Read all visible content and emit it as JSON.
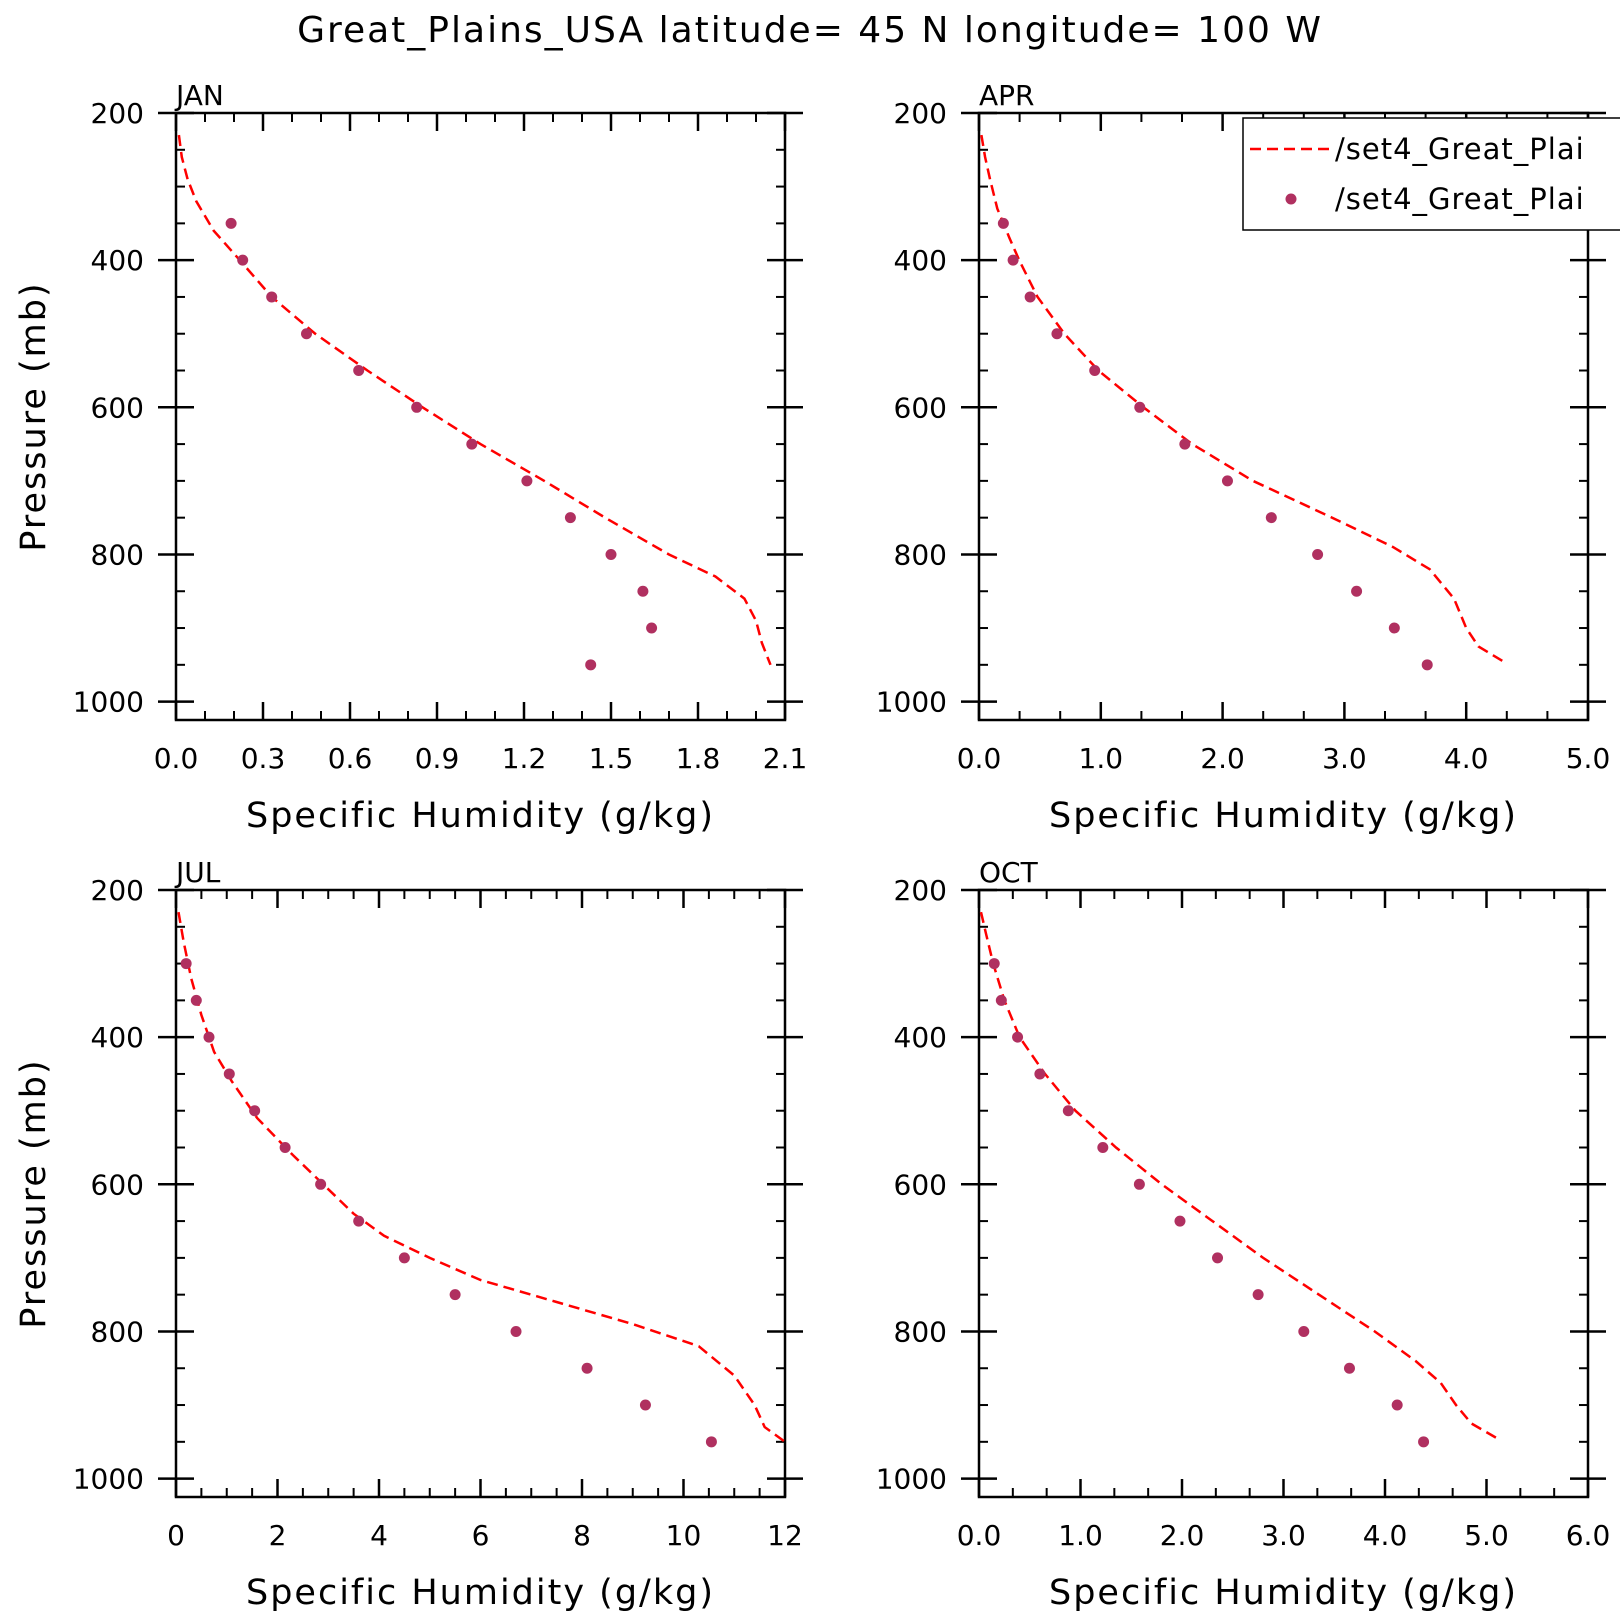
{
  "title": "Great_Plains_USA  latitude= 45 N longitude= 100 W",
  "legend": {
    "entries": [
      {
        "label": "/set4_Great_Plai",
        "style": "dashed-line",
        "color": "#ff0000"
      },
      {
        "label": "/set4_Great_Plai",
        "style": "dot",
        "color": "#b03060"
      }
    ]
  },
  "colors": {
    "model": "#ff0000",
    "obs": "#b03060",
    "axes": "#000000"
  },
  "chart_data": [
    {
      "type": "line",
      "panel": "JAN",
      "xlabel": "Specific Humidity (g/kg)",
      "ylabel": "Pressure (mb)",
      "xlim": [
        0,
        2.1
      ],
      "ylim": [
        200,
        1025
      ],
      "y_inverted": true,
      "xticks": [
        "0.0",
        "0.3",
        "0.6",
        "0.9",
        "1.2",
        "1.5",
        "1.8",
        "2.1"
      ],
      "xtick_values": [
        0,
        0.3,
        0.6,
        0.9,
        1.2,
        1.5,
        1.8,
        2.1
      ],
      "yticks": [
        "200",
        "400",
        "600",
        "800",
        "1000"
      ],
      "yticks_values": [
        200,
        400,
        600,
        800,
        1000
      ],
      "series": [
        {
          "style": "dashed-line",
          "points": [
            [
              0.01,
              230
            ],
            [
              0.02,
              260
            ],
            [
              0.04,
              290
            ],
            [
              0.07,
              320
            ],
            [
              0.13,
              360
            ],
            [
              0.22,
              400
            ],
            [
              0.33,
              450
            ],
            [
              0.48,
              500
            ],
            [
              0.66,
              550
            ],
            [
              0.85,
              600
            ],
            [
              1.05,
              650
            ],
            [
              1.27,
              700
            ],
            [
              1.48,
              750
            ],
            [
              1.7,
              800
            ],
            [
              1.86,
              830
            ],
            [
              1.96,
              860
            ],
            [
              2.0,
              890
            ],
            [
              2.02,
              920
            ],
            [
              2.04,
              940
            ],
            [
              2.05,
              950
            ]
          ]
        },
        {
          "style": "dots",
          "points": [
            [
              0.19,
              350
            ],
            [
              0.23,
              400
            ],
            [
              0.33,
              450
            ],
            [
              0.45,
              500
            ],
            [
              0.63,
              550
            ],
            [
              0.83,
              600
            ],
            [
              1.02,
              650
            ],
            [
              1.21,
              700
            ],
            [
              1.36,
              750
            ],
            [
              1.5,
              800
            ],
            [
              1.61,
              850
            ],
            [
              1.64,
              900
            ],
            [
              1.43,
              950
            ]
          ]
        }
      ]
    },
    {
      "type": "line",
      "panel": "APR",
      "xlabel": "Specific Humidity (g/kg)",
      "ylabel": "",
      "xlim": [
        0,
        5.0
      ],
      "ylim": [
        200,
        1025
      ],
      "y_inverted": true,
      "xticks": [
        "0.0",
        "1.0",
        "2.0",
        "3.0",
        "4.0",
        "5.0"
      ],
      "xtick_values": [
        0,
        1,
        2,
        3,
        4,
        5
      ],
      "yticks": [
        "200",
        "400",
        "600",
        "800",
        "1000"
      ],
      "yticks_values": [
        200,
        400,
        600,
        800,
        1000
      ],
      "series": [
        {
          "style": "dashed-line",
          "points": [
            [
              0.02,
              230
            ],
            [
              0.05,
              260
            ],
            [
              0.09,
              290
            ],
            [
              0.15,
              330
            ],
            [
              0.25,
              370
            ],
            [
              0.33,
              400
            ],
            [
              0.48,
              450
            ],
            [
              0.7,
              500
            ],
            [
              0.98,
              550
            ],
            [
              1.35,
              600
            ],
            [
              1.75,
              650
            ],
            [
              2.25,
              700
            ],
            [
              2.9,
              750
            ],
            [
              3.4,
              790
            ],
            [
              3.7,
              820
            ],
            [
              3.9,
              860
            ],
            [
              4.0,
              900
            ],
            [
              4.1,
              925
            ],
            [
              4.3,
              945
            ]
          ]
        },
        {
          "style": "dots",
          "points": [
            [
              0.2,
              350
            ],
            [
              0.28,
              400
            ],
            [
              0.42,
              450
            ],
            [
              0.64,
              500
            ],
            [
              0.95,
              550
            ],
            [
              1.32,
              600
            ],
            [
              1.69,
              650
            ],
            [
              2.04,
              700
            ],
            [
              2.4,
              750
            ],
            [
              2.78,
              800
            ],
            [
              3.1,
              850
            ],
            [
              3.41,
              900
            ],
            [
              3.68,
              950
            ]
          ]
        }
      ]
    },
    {
      "type": "line",
      "panel": "JUL",
      "xlabel": "Specific Humidity (g/kg)",
      "ylabel": "Pressure (mb)",
      "xlim": [
        0,
        12
      ],
      "ylim": [
        200,
        1025
      ],
      "y_inverted": true,
      "xticks": [
        "0",
        "2",
        "4",
        "6",
        "8",
        "10",
        "12"
      ],
      "xtick_values": [
        0,
        2,
        4,
        6,
        8,
        10,
        12
      ],
      "yticks": [
        "200",
        "400",
        "600",
        "800",
        "1000"
      ],
      "yticks_values": [
        200,
        400,
        600,
        800,
        1000
      ],
      "series": [
        {
          "style": "dashed-line",
          "points": [
            [
              0.05,
              230
            ],
            [
              0.15,
              270
            ],
            [
              0.3,
              320
            ],
            [
              0.5,
              370
            ],
            [
              0.75,
              420
            ],
            [
              1.1,
              460
            ],
            [
              1.6,
              510
            ],
            [
              2.3,
              560
            ],
            [
              2.9,
              600
            ],
            [
              3.5,
              640
            ],
            [
              4.1,
              670
            ],
            [
              5.0,
              700
            ],
            [
              6.0,
              730
            ],
            [
              7.5,
              760
            ],
            [
              9.0,
              790
            ],
            [
              10.3,
              820
            ],
            [
              11.0,
              860
            ],
            [
              11.4,
              900
            ],
            [
              11.6,
              930
            ],
            [
              12.0,
              950
            ]
          ]
        },
        {
          "style": "dots",
          "points": [
            [
              0.2,
              300
            ],
            [
              0.4,
              350
            ],
            [
              0.65,
              400
            ],
            [
              1.05,
              450
            ],
            [
              1.55,
              500
            ],
            [
              2.15,
              550
            ],
            [
              2.85,
              600
            ],
            [
              3.6,
              650
            ],
            [
              4.5,
              700
            ],
            [
              5.5,
              750
            ],
            [
              6.7,
              800
            ],
            [
              8.1,
              850
            ],
            [
              9.25,
              900
            ],
            [
              10.55,
              950
            ]
          ]
        }
      ]
    },
    {
      "type": "line",
      "panel": "OCT",
      "xlabel": "Specific Humidity (g/kg)",
      "ylabel": "",
      "xlim": [
        0,
        6.0
      ],
      "ylim": [
        200,
        1025
      ],
      "y_inverted": true,
      "xticks": [
        "0.0",
        "1.0",
        "2.0",
        "3.0",
        "4.0",
        "5.0",
        "6.0"
      ],
      "xtick_values": [
        0,
        1,
        2,
        3,
        4,
        5,
        6
      ],
      "yticks": [
        "200",
        "400",
        "600",
        "800",
        "1000"
      ],
      "yticks_values": [
        200,
        400,
        600,
        800,
        1000
      ],
      "series": [
        {
          "style": "dashed-line",
          "points": [
            [
              0.02,
              230
            ],
            [
              0.07,
              260
            ],
            [
              0.14,
              300
            ],
            [
              0.25,
              350
            ],
            [
              0.4,
              400
            ],
            [
              0.65,
              450
            ],
            [
              0.95,
              500
            ],
            [
              1.35,
              550
            ],
            [
              1.8,
              600
            ],
            [
              2.3,
              650
            ],
            [
              2.8,
              700
            ],
            [
              3.35,
              750
            ],
            [
              3.9,
              800
            ],
            [
              4.3,
              840
            ],
            [
              4.55,
              870
            ],
            [
              4.7,
              900
            ],
            [
              4.85,
              925
            ],
            [
              5.1,
              945
            ]
          ]
        },
        {
          "style": "dots",
          "points": [
            [
              0.15,
              300
            ],
            [
              0.22,
              350
            ],
            [
              0.38,
              400
            ],
            [
              0.6,
              450
            ],
            [
              0.88,
              500
            ],
            [
              1.22,
              550
            ],
            [
              1.58,
              600
            ],
            [
              1.98,
              650
            ],
            [
              2.35,
              700
            ],
            [
              2.75,
              750
            ],
            [
              3.2,
              800
            ],
            [
              3.65,
              850
            ],
            [
              4.12,
              900
            ],
            [
              4.38,
              950
            ]
          ]
        }
      ]
    }
  ]
}
